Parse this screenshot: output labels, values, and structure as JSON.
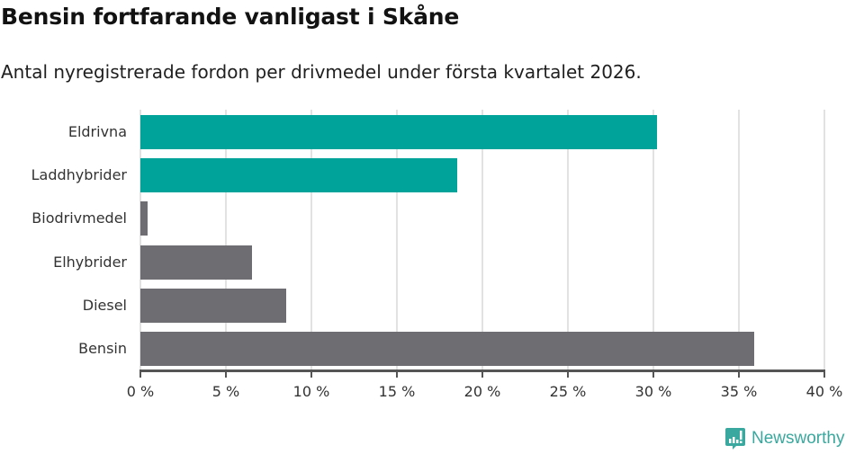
{
  "header": {
    "title": "Bensin fortfarande vanligast i Skåne",
    "subtitle": "Antal nyregistrerade fordon per drivmedel under första kvartalet 2026."
  },
  "chart_data": {
    "type": "bar",
    "orientation": "horizontal",
    "title": "Bensin fortfarande vanligast i Skåne",
    "subtitle": "Antal nyregistrerade fordon per drivmedel under första kvartalet 2026.",
    "xlabel": "",
    "ylabel": "",
    "categories": [
      "Eldrivna",
      "Laddhybrider",
      "Biodrivmedel",
      "Elhybrider",
      "Diesel",
      "Bensin"
    ],
    "values": [
      30.2,
      18.5,
      0.4,
      6.5,
      8.5,
      35.9
    ],
    "unit": "%",
    "colors": [
      "#00a39a",
      "#00a39a",
      "#6e6d72",
      "#6e6d72",
      "#6e6d72",
      "#6e6d72"
    ],
    "xlim": [
      0,
      40
    ],
    "xticks": [
      "0 %",
      "5 %",
      "10 %",
      "15 %",
      "20 %",
      "25 %",
      "30 %",
      "35 %",
      "40 %"
    ],
    "grid": true,
    "legend": null
  },
  "colors": {
    "highlight": "#00a39a",
    "neutral": "#6e6d72",
    "brand": "#3aa89e"
  },
  "footer": {
    "brand": "Newsworthy",
    "logo_icon": "bar-chart-speech-bubble-icon"
  }
}
